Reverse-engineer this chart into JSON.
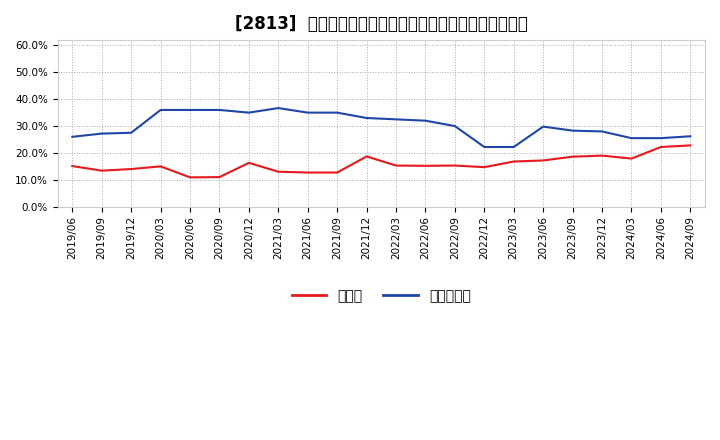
{
  "title": "[2813]  現須金、有利子負債の総資産に対する比率の推移",
  "ylim": [
    0.0,
    0.62
  ],
  "yticks": [
    0.0,
    0.1,
    0.2,
    0.3,
    0.4,
    0.5,
    0.6
  ],
  "ytick_labels": [
    "0.0%",
    "10.0%",
    "20.0%",
    "30.0%",
    "40.0%",
    "50.0%",
    "60.0%"
  ],
  "x_labels": [
    "2019/06",
    "2019/09",
    "2019/12",
    "2020/03",
    "2020/06",
    "2020/09",
    "2020/12",
    "2021/03",
    "2021/06",
    "2021/09",
    "2021/12",
    "2022/03",
    "2022/06",
    "2022/09",
    "2022/12",
    "2023/03",
    "2023/06",
    "2023/09",
    "2023/12",
    "2024/03",
    "2024/06",
    "2024/09"
  ],
  "cash_values": [
    0.151,
    0.134,
    0.14,
    0.15,
    0.109,
    0.11,
    0.163,
    0.13,
    0.127,
    0.127,
    0.187,
    0.153,
    0.152,
    0.153,
    0.147,
    0.168,
    0.172,
    0.186,
    0.19,
    0.179,
    0.222,
    0.228
  ],
  "debt_values": [
    0.26,
    0.272,
    0.275,
    0.36,
    0.36,
    0.36,
    0.35,
    0.367,
    0.35,
    0.35,
    0.33,
    0.325,
    0.32,
    0.3,
    0.222,
    0.222,
    0.298,
    0.283,
    0.28,
    0.255,
    0.255,
    0.262
  ],
  "cash_color": "#e8191c",
  "debt_color": "#1e45a8",
  "bg_color": "#ffffff",
  "plot_bg_color": "#ffffff",
  "grid_color": "#aaaaaa",
  "legend_cash": "現須金",
  "legend_debt": "有利子負債",
  "title_fontsize": 12,
  "tick_fontsize": 7.5,
  "legend_fontsize": 10
}
